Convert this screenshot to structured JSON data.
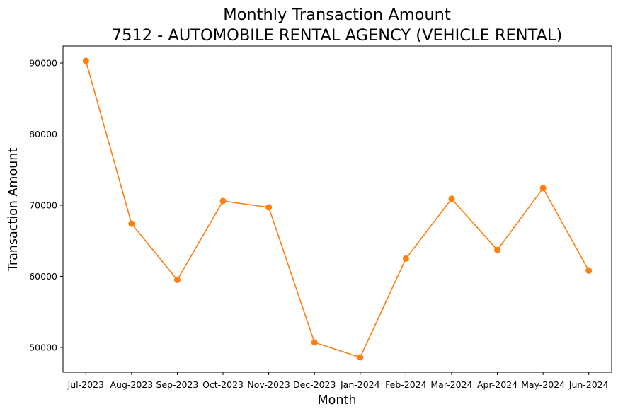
{
  "chart_data": {
    "type": "line",
    "title": "Monthly Transaction Amount",
    "subtitle": "7512 - AUTOMOBILE RENTAL AGENCY (VEHICLE RENTAL)",
    "xlabel": "Month",
    "ylabel": "Transaction Amount",
    "categories": [
      "Jul-2023",
      "Aug-2023",
      "Sep-2023",
      "Oct-2023",
      "Nov-2023",
      "Dec-2023",
      "Jan-2024",
      "Feb-2024",
      "Mar-2024",
      "Apr-2024",
      "May-2024",
      "Jun-2024"
    ],
    "values": [
      90300,
      67400,
      59500,
      70600,
      69700,
      50700,
      48600,
      62500,
      70900,
      63700,
      72400,
      60800
    ],
    "yticks": [
      50000,
      60000,
      70000,
      80000,
      90000
    ],
    "ylim": [
      46510,
      92390
    ],
    "grid": false,
    "series_color": "#ff7f0e"
  }
}
